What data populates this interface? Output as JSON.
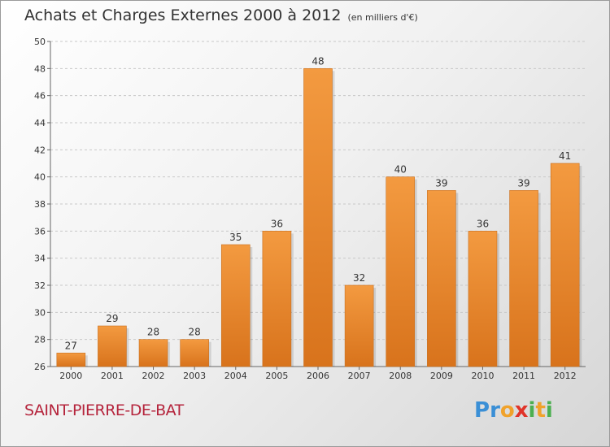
{
  "header": {
    "title": "Achats et Charges Externes 2000 à 2012",
    "subtitle": "(en milliers d'€)"
  },
  "footer": {
    "place": "SAINT-PIERRE-DE-BAT",
    "logo": [
      "P",
      "r",
      "o",
      "x",
      "i",
      "t",
      "i"
    ],
    "logo_colors": [
      "#3a8fd6",
      "#3a8fd6",
      "#f0a22b",
      "#e0342a",
      "#4caf50",
      "#f0a22b",
      "#4caf50"
    ]
  },
  "chart_data": {
    "type": "bar",
    "title": "Achats et Charges Externes 2000 à 2012",
    "subtitle": "(en milliers d'€)",
    "categories": [
      "2000",
      "2001",
      "2002",
      "2003",
      "2004",
      "2005",
      "2006",
      "2007",
      "2008",
      "2009",
      "2010",
      "2011",
      "2012"
    ],
    "values": [
      27,
      29,
      28,
      28,
      35,
      36,
      48,
      32,
      40,
      39,
      36,
      39,
      41
    ],
    "ylim": [
      26,
      50
    ],
    "yticks": [
      26,
      28,
      30,
      32,
      34,
      36,
      38,
      40,
      42,
      44,
      46,
      48,
      50
    ],
    "grid": true,
    "bar_color": "#f39a40",
    "bar_color_dark": "#d8731c"
  }
}
